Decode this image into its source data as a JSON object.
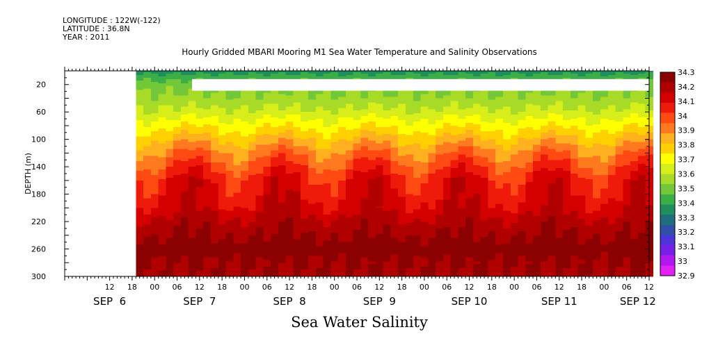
{
  "meta": {
    "longitude": "LONGITUDE : 122W(-122)",
    "latitude": "LATITUDE : 36.8N",
    "year": "YEAR : 2011"
  },
  "title": "Hourly Gridded MBARI Mooring M1 Sea Water Temperature and Salinity Observations",
  "footer": "Sea Water Salinity",
  "chart_data": {
    "type": "heatmap",
    "title": "Hourly Gridded MBARI Mooring M1 Sea Water Temperature and Salinity Observations",
    "xlabel": "",
    "ylabel": "DEPTH (m)",
    "variable": "Sea Water Salinity",
    "y_range": [
      0,
      300
    ],
    "y_reversed": true,
    "y_ticks": [
      20,
      60,
      100,
      140,
      180,
      220,
      260,
      300
    ],
    "x_range_hours": [
      0,
      156
    ],
    "x_ticks": [
      {
        "h": 12,
        "label": "12"
      },
      {
        "h": 18,
        "label": "18"
      },
      {
        "h": 24,
        "label": "00"
      },
      {
        "h": 30,
        "label": "06"
      },
      {
        "h": 36,
        "label": "12"
      },
      {
        "h": 42,
        "label": "18"
      },
      {
        "h": 48,
        "label": "00"
      },
      {
        "h": 54,
        "label": "06"
      },
      {
        "h": 60,
        "label": "12"
      },
      {
        "h": 66,
        "label": "18"
      },
      {
        "h": 72,
        "label": "00"
      },
      {
        "h": 78,
        "label": "06"
      },
      {
        "h": 84,
        "label": "12"
      },
      {
        "h": 90,
        "label": "18"
      },
      {
        "h": 96,
        "label": "00"
      },
      {
        "h": 102,
        "label": "06"
      },
      {
        "h": 108,
        "label": "12"
      },
      {
        "h": 114,
        "label": "18"
      },
      {
        "h": 120,
        "label": "00"
      },
      {
        "h": 126,
        "label": "06"
      },
      {
        "h": 132,
        "label": "12"
      },
      {
        "h": 138,
        "label": "18"
      },
      {
        "h": 144,
        "label": "00"
      },
      {
        "h": 150,
        "label": "06"
      },
      {
        "h": 156,
        "label": "12"
      }
    ],
    "day_labels": [
      {
        "h": 12,
        "label": "SEP  6"
      },
      {
        "h": 36,
        "label": "SEP  7"
      },
      {
        "h": 60,
        "label": "SEP  8"
      },
      {
        "h": 84,
        "label": "SEP  9"
      },
      {
        "h": 108,
        "label": "SEP 10"
      },
      {
        "h": 132,
        "label": "SEP 11"
      },
      {
        "h": 153,
        "label": "SEP 12"
      }
    ],
    "data_start_hour": 19,
    "gap": {
      "depth_from": 12,
      "depth_to": 29,
      "hour_from": 34,
      "hour_to": 156
    },
    "colorbar": {
      "levels": [
        "34.3",
        "34.2",
        "34.1",
        "34",
        "33.9",
        "33.8",
        "33.7",
        "33.6",
        "33.5",
        "33.4",
        "33.3",
        "33.2",
        "33.1",
        "33",
        "32.9"
      ],
      "colors": [
        "#8b0000",
        "#b00000",
        "#d40000",
        "#f01a0a",
        "#ff4a14",
        "#ff7a1e",
        "#ffb01e",
        "#ffd000",
        "#ffff00",
        "#d8ee1a",
        "#a8da28",
        "#72c838",
        "#3cae48",
        "#1e8e5c",
        "#1e6e7e",
        "#3050a8",
        "#4c34d8",
        "#7820e8",
        "#b018f0",
        "#e020f4"
      ],
      "value_lo": 32.9,
      "value_hi": 34.3
    },
    "profile": [
      {
        "depth": 0,
        "value": 33.35
      },
      {
        "depth": 8,
        "value": 33.42
      },
      {
        "depth": 20,
        "value": 33.5
      },
      {
        "depth": 40,
        "value": 33.55
      },
      {
        "depth": 60,
        "value": 33.62
      },
      {
        "depth": 80,
        "value": 33.72
      },
      {
        "depth": 100,
        "value": 33.82
      },
      {
        "depth": 120,
        "value": 33.92
      },
      {
        "depth": 140,
        "value": 34.0
      },
      {
        "depth": 160,
        "value": 34.08
      },
      {
        "depth": 180,
        "value": 34.1
      },
      {
        "depth": 200,
        "value": 34.13
      },
      {
        "depth": 220,
        "value": 34.19
      },
      {
        "depth": 240,
        "value": 34.23
      },
      {
        "depth": 260,
        "value": 34.27
      },
      {
        "depth": 280,
        "value": 34.23
      },
      {
        "depth": 300,
        "value": 34.22
      }
    ],
    "grid": false,
    "legend": "colorbar-right"
  }
}
